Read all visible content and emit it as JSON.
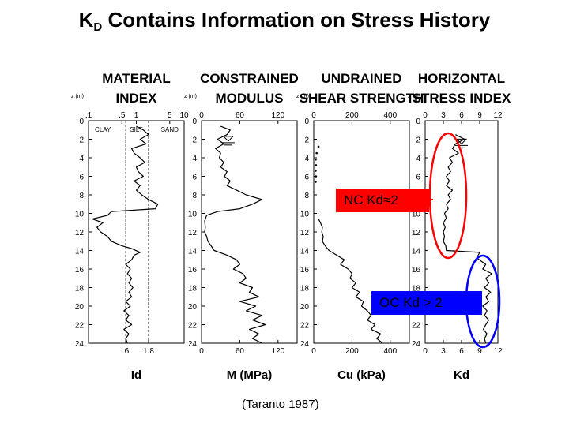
{
  "title": {
    "main": "K",
    "sub": "D",
    "rest": " Contains Information on Stress History"
  },
  "credit": "(Taranto 1987)",
  "annotations": {
    "nc": "NC  Kd≈2",
    "oc": "OC  Kd > 2"
  },
  "colors": {
    "nc": "#ff0000",
    "oc": "#0000ff",
    "trace": "#000000"
  },
  "chart_data": [
    {
      "type": "line",
      "header": [
        "MATERIAL",
        "INDEX"
      ],
      "xlabel": "Id",
      "ylabel": "z (m)",
      "ylim": [
        0,
        24
      ],
      "depth_ticks": [
        0,
        2,
        4,
        6,
        8,
        10,
        12,
        14,
        16,
        18,
        20,
        22,
        24
      ],
      "x_scale": "log",
      "xlim": [
        0.1,
        10
      ],
      "top_ticks": [
        {
          "v": 0.1,
          "t": ".1"
        },
        {
          "v": 0.5,
          "t": ".5"
        },
        {
          "v": 1,
          "t": "1"
        },
        {
          "v": 5,
          "t": "5"
        },
        {
          "v": 10,
          "t": "10"
        }
      ],
      "bottom_ticks": [
        {
          "v": 0.6,
          "t": ".6"
        },
        {
          "v": 1.8,
          "t": "1.8"
        }
      ],
      "soil_labels": [
        {
          "v": 0.2,
          "t": "CLAY"
        },
        {
          "v": 1.0,
          "t": "SILT"
        },
        {
          "v": 5.0,
          "t": "SAND"
        }
      ],
      "boundaries": [
        0.6,
        1.8
      ],
      "profile": [
        [
          0.6,
          1.0
        ],
        [
          1.0,
          1.4
        ],
        [
          1.5,
          1.8
        ],
        [
          2.0,
          1.2
        ],
        [
          2.5,
          1.6
        ],
        [
          3.0,
          0.8
        ],
        [
          3.5,
          0.9
        ],
        [
          4.0,
          1.2
        ],
        [
          4.5,
          1.5
        ],
        [
          5.0,
          1.0
        ],
        [
          5.5,
          1.1
        ],
        [
          6.0,
          1.4
        ],
        [
          6.5,
          0.9
        ],
        [
          7.0,
          1.2
        ],
        [
          7.5,
          1.0
        ],
        [
          8.0,
          1.3
        ],
        [
          8.5,
          1.8
        ],
        [
          9.0,
          2.8
        ],
        [
          9.5,
          2.5
        ],
        [
          9.8,
          0.3
        ],
        [
          10.2,
          0.25
        ],
        [
          10.6,
          0.12
        ],
        [
          11.0,
          0.2
        ],
        [
          11.5,
          0.15
        ],
        [
          12.0,
          0.18
        ],
        [
          12.5,
          0.25
        ],
        [
          13.0,
          0.3
        ],
        [
          13.5,
          0.5
        ],
        [
          13.8,
          0.8
        ],
        [
          14.2,
          1.2
        ],
        [
          14.5,
          0.9
        ],
        [
          15.0,
          0.8
        ],
        [
          15.5,
          0.6
        ],
        [
          16.0,
          0.75
        ],
        [
          16.5,
          0.65
        ],
        [
          17.0,
          0.8
        ],
        [
          17.5,
          0.7
        ],
        [
          18.0,
          0.85
        ],
        [
          18.5,
          0.7
        ],
        [
          19.0,
          0.8
        ],
        [
          19.5,
          0.6
        ],
        [
          20.0,
          0.75
        ],
        [
          20.5,
          0.55
        ],
        [
          21.0,
          0.7
        ],
        [
          21.5,
          0.6
        ],
        [
          22.0,
          0.8
        ],
        [
          22.5,
          0.55
        ],
        [
          23.0,
          0.7
        ],
        [
          23.5,
          0.6
        ],
        [
          24.0,
          0.65
        ]
      ]
    },
    {
      "type": "line",
      "header": [
        "CONSTRAINED",
        "MODULUS"
      ],
      "xlabel": "M (MPa)",
      "ylabel": "z (m)",
      "ylim": [
        0,
        24
      ],
      "depth_ticks": [
        0,
        2,
        4,
        6,
        8,
        10,
        12,
        14,
        16,
        18,
        20,
        22,
        24
      ],
      "x_scale": "linear",
      "xlim": [
        0,
        150
      ],
      "top_ticks": [
        {
          "v": 0,
          "t": "0"
        },
        {
          "v": 60,
          "t": "60"
        },
        {
          "v": 120,
          "t": "120"
        }
      ],
      "bottom_ticks": [
        {
          "v": 0,
          "t": "0"
        },
        {
          "v": 60,
          "t": "60"
        },
        {
          "v": 120,
          "t": "120"
        }
      ],
      "water_table_depth": 2.2,
      "profile": [
        [
          0.6,
          30
        ],
        [
          1.0,
          45
        ],
        [
          1.5,
          40
        ],
        [
          2.0,
          25
        ],
        [
          2.5,
          35
        ],
        [
          3.0,
          22
        ],
        [
          3.5,
          30
        ],
        [
          4.0,
          28
        ],
        [
          4.5,
          35
        ],
        [
          5.0,
          30
        ],
        [
          5.5,
          40
        ],
        [
          6.0,
          36
        ],
        [
          6.5,
          45
        ],
        [
          7.0,
          40
        ],
        [
          7.5,
          55
        ],
        [
          8.0,
          70
        ],
        [
          8.5,
          95
        ],
        [
          9.0,
          80
        ],
        [
          9.5,
          60
        ],
        [
          9.8,
          25
        ],
        [
          10.2,
          8
        ],
        [
          10.8,
          5
        ],
        [
          11.5,
          6
        ],
        [
          12.0,
          5
        ],
        [
          12.5,
          8
        ],
        [
          13.0,
          10
        ],
        [
          13.5,
          15
        ],
        [
          14.0,
          20
        ],
        [
          14.5,
          40
        ],
        [
          15.0,
          55
        ],
        [
          15.5,
          60
        ],
        [
          16.0,
          50
        ],
        [
          16.5,
          65
        ],
        [
          17.0,
          70
        ],
        [
          17.5,
          60
        ],
        [
          18.0,
          80
        ],
        [
          18.5,
          75
        ],
        [
          19.0,
          90
        ],
        [
          19.5,
          60
        ],
        [
          20.0,
          85
        ],
        [
          20.5,
          70
        ],
        [
          21.0,
          95
        ],
        [
          21.5,
          80
        ],
        [
          22.0,
          100
        ],
        [
          22.5,
          75
        ],
        [
          23.0,
          90
        ],
        [
          23.5,
          80
        ],
        [
          24.0,
          95
        ]
      ]
    },
    {
      "type": "line",
      "header": [
        "UNDRAINED",
        "SHEAR STRENGTH"
      ],
      "xlabel": "Cu (kPa)",
      "ylabel": "z (m)",
      "ylim": [
        0,
        24
      ],
      "depth_ticks": [
        0,
        2,
        4,
        6,
        8,
        10,
        12,
        14,
        16,
        18,
        20,
        22,
        24
      ],
      "x_scale": "linear",
      "xlim": [
        0,
        500
      ],
      "top_ticks": [
        {
          "v": 0,
          "t": "0"
        },
        {
          "v": 200,
          "t": "200"
        },
        {
          "v": 400,
          "t": "400"
        }
      ],
      "bottom_ticks": [
        {
          "v": 0,
          "t": "0"
        },
        {
          "v": 200,
          "t": "200"
        },
        {
          "v": 400,
          "t": "400"
        }
      ],
      "dots": [
        [
          2.8,
          25
        ],
        [
          3.5,
          15
        ],
        [
          4.2,
          10
        ],
        [
          4.8,
          12
        ],
        [
          5.4,
          10
        ],
        [
          6.0,
          12
        ],
        [
          6.6,
          10
        ]
      ],
      "profile": [
        [
          10.6,
          25
        ],
        [
          11.0,
          35
        ],
        [
          11.5,
          45
        ],
        [
          12.0,
          42
        ],
        [
          12.5,
          50
        ],
        [
          13.0,
          45
        ],
        [
          13.5,
          60
        ],
        [
          14.0,
          80
        ],
        [
          14.5,
          120
        ],
        [
          15.0,
          160
        ],
        [
          15.5,
          140
        ],
        [
          16.0,
          180
        ],
        [
          16.5,
          200
        ],
        [
          17.0,
          190
        ],
        [
          17.5,
          220
        ],
        [
          18.0,
          200
        ],
        [
          18.5,
          240
        ],
        [
          19.0,
          220
        ],
        [
          19.5,
          260
        ],
        [
          20.0,
          250
        ],
        [
          20.5,
          280
        ],
        [
          21.0,
          300
        ],
        [
          21.5,
          280
        ],
        [
          22.0,
          320
        ],
        [
          22.5,
          300
        ],
        [
          23.0,
          350
        ],
        [
          23.5,
          330
        ],
        [
          24.0,
          360
        ]
      ]
    },
    {
      "type": "line",
      "header": [
        "HORIZONTAL",
        "STRESS INDEX"
      ],
      "xlabel": "Kd",
      "ylabel": "z (m)",
      "ylim": [
        0,
        24
      ],
      "depth_ticks": [
        0,
        2,
        4,
        6,
        8,
        10,
        12,
        14,
        16,
        18,
        20,
        22,
        24
      ],
      "x_scale": "linear",
      "xlim": [
        0,
        12
      ],
      "top_ticks": [
        {
          "v": 0,
          "t": "0"
        },
        {
          "v": 3,
          "t": "3"
        },
        {
          "v": 6,
          "t": "6"
        },
        {
          "v": 9,
          "t": "9"
        },
        {
          "v": 12,
          "t": "12"
        }
      ],
      "bottom_ticks": [
        {
          "v": 0,
          "t": "0"
        },
        {
          "v": 3,
          "t": "3"
        },
        {
          "v": 6,
          "t": "6"
        },
        {
          "v": 9,
          "t": "9"
        },
        {
          "v": 12,
          "t": "12"
        }
      ],
      "water_table_depth": 2.5,
      "profile": [
        [
          1.5,
          5.0
        ],
        [
          2.0,
          6.5
        ],
        [
          2.5,
          5.0
        ],
        [
          3.0,
          4.5
        ],
        [
          3.5,
          5.5
        ],
        [
          4.0,
          4.0
        ],
        [
          4.5,
          4.5
        ],
        [
          5.0,
          3.8
        ],
        [
          5.5,
          4.2
        ],
        [
          6.0,
          3.5
        ],
        [
          6.5,
          4.0
        ],
        [
          7.0,
          3.5
        ],
        [
          7.5,
          4.5
        ],
        [
          8.0,
          3.8
        ],
        [
          8.5,
          4.2
        ],
        [
          9.0,
          3.5
        ],
        [
          9.5,
          3.8
        ],
        [
          10.0,
          3.2
        ],
        [
          10.5,
          3.5
        ],
        [
          11.0,
          3.0
        ],
        [
          11.5,
          3.3
        ],
        [
          12.0,
          3.0
        ],
        [
          12.5,
          3.2
        ],
        [
          13.0,
          3.0
        ],
        [
          13.5,
          3.4
        ],
        [
          14.0,
          3.5
        ],
        [
          14.2,
          9.0
        ],
        [
          14.8,
          8.5
        ],
        [
          15.5,
          10.0
        ],
        [
          16.0,
          9.5
        ],
        [
          16.5,
          11.0
        ],
        [
          17.0,
          10.0
        ],
        [
          17.5,
          10.5
        ],
        [
          18.0,
          9.8
        ],
        [
          18.5,
          10.8
        ],
        [
          19.0,
          10.0
        ],
        [
          19.5,
          10.5
        ],
        [
          20.0,
          9.5
        ],
        [
          20.5,
          10.2
        ],
        [
          21.0,
          9.8
        ],
        [
          21.5,
          10.5
        ],
        [
          22.0,
          10.0
        ],
        [
          22.5,
          9.6
        ],
        [
          23.0,
          10.2
        ],
        [
          23.5,
          9.8
        ],
        [
          24.0,
          10.0
        ]
      ]
    }
  ]
}
